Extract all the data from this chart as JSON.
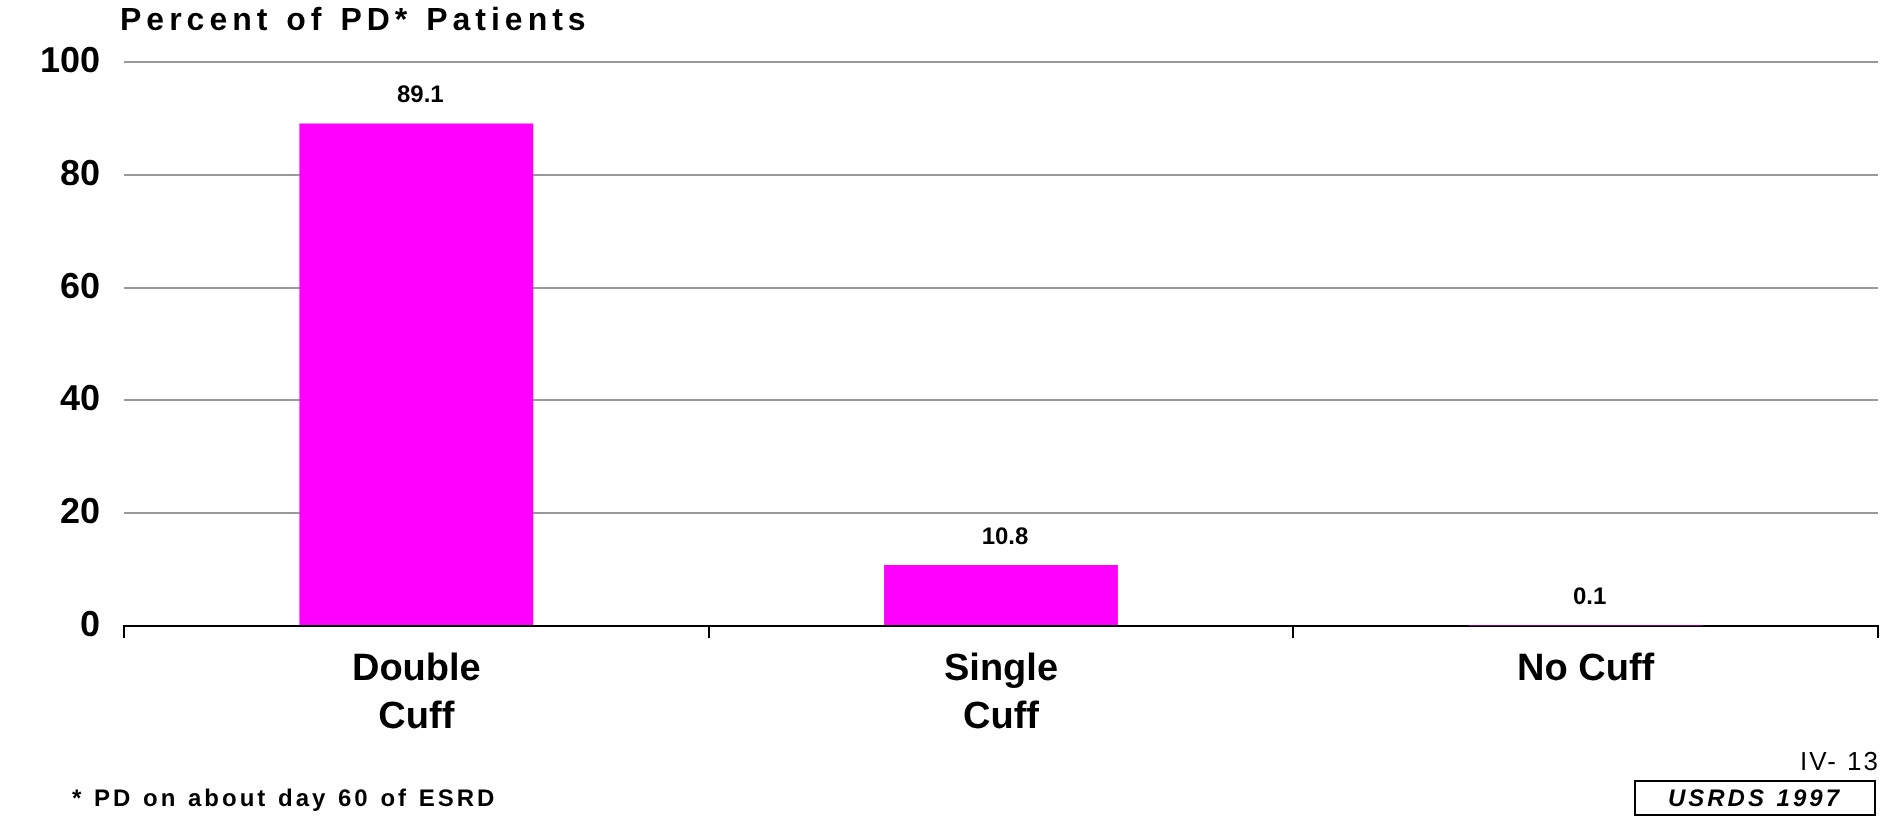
{
  "chart_data": {
    "type": "bar",
    "title": "Percent of PD* Patients",
    "categories": [
      "Double\nCuff",
      "Single\nCuff",
      "No Cuff"
    ],
    "values": [
      89.1,
      10.8,
      0.1
    ],
    "color": "#ff00ff",
    "ylim": [
      0,
      100
    ],
    "yticks": [
      0,
      20,
      40,
      60,
      80,
      100
    ],
    "grid": "y",
    "data_labels": true,
    "annotations": [
      "* PD on about day 60 of ESRD",
      "IV- 13",
      "USRDS 1997"
    ]
  }
}
